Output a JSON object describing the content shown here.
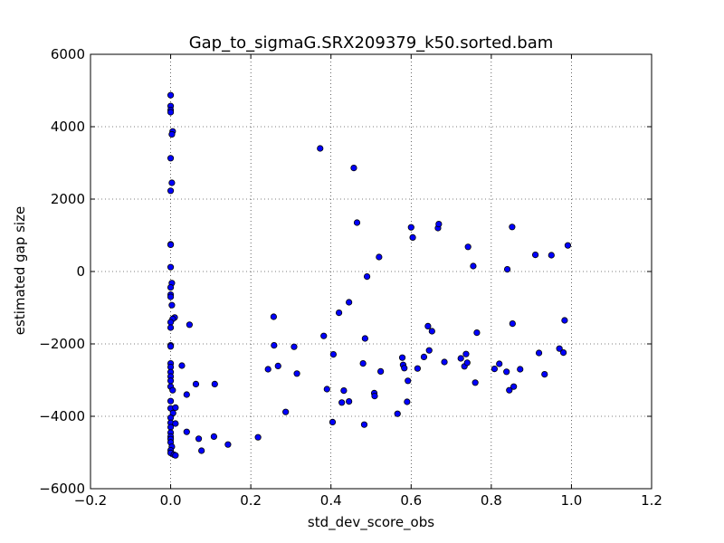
{
  "chart_data": {
    "type": "scatter",
    "title": "Gap_to_sigmaG.SRX209379_k50.sorted.bam",
    "xlabel": "std_dev_score_obs",
    "ylabel": "estimated gap size",
    "xlim": [
      -0.2,
      1.2
    ],
    "ylim": [
      -6000,
      6000
    ],
    "xticks": [
      -0.2,
      0.0,
      0.2,
      0.4,
      0.6,
      0.8,
      1.0,
      1.2
    ],
    "xtick_labels": [
      "−0.2",
      "0.0",
      "0.2",
      "0.4",
      "0.6",
      "0.8",
      "1.0",
      "1.2"
    ],
    "yticks": [
      -6000,
      -4000,
      -2000,
      0,
      2000,
      4000,
      6000
    ],
    "ytick_labels": [
      "−6000",
      "−4000",
      "−2000",
      "0",
      "2000",
      "4000",
      "6000"
    ],
    "grid": true,
    "marker_color": "#0000ff",
    "points": [
      [
        0.0,
        4870
      ],
      [
        0.0,
        4570
      ],
      [
        0.0,
        4460
      ],
      [
        0.0,
        4400
      ],
      [
        0.005,
        3870
      ],
      [
        0.003,
        3790
      ],
      [
        0.0,
        3130
      ],
      [
        0.003,
        2450
      ],
      [
        0.0,
        2230
      ],
      [
        0.0,
        750
      ],
      [
        0.0,
        740
      ],
      [
        0.0,
        120
      ],
      [
        0.003,
        -320
      ],
      [
        0.0,
        -440
      ],
      [
        0.0,
        -640
      ],
      [
        0.0,
        -700
      ],
      [
        0.003,
        -930
      ],
      [
        0.01,
        -1270
      ],
      [
        0.005,
        -1310
      ],
      [
        0.0,
        -1400
      ],
      [
        0.0,
        -1550
      ],
      [
        0.0,
        -2040
      ],
      [
        0.0,
        -2070
      ],
      [
        0.0,
        -2540
      ],
      [
        0.0,
        -2640
      ],
      [
        0.0,
        -2780
      ],
      [
        0.0,
        -2900
      ],
      [
        0.0,
        -3020
      ],
      [
        0.0,
        -3180
      ],
      [
        0.005,
        -3280
      ],
      [
        0.0,
        -3580
      ],
      [
        0.0,
        -3780
      ],
      [
        0.006,
        -3910
      ],
      [
        0.0,
        -4040
      ],
      [
        0.0,
        -4180
      ],
      [
        0.0,
        -4300
      ],
      [
        0.0,
        -4450
      ],
      [
        0.0,
        -4560
      ],
      [
        0.0,
        -4630
      ],
      [
        0.0,
        -4720
      ],
      [
        0.003,
        -4840
      ],
      [
        0.0,
        -4940
      ],
      [
        0.0,
        -5010
      ],
      [
        0.008,
        -5060
      ],
      [
        0.012,
        -5080
      ],
      [
        0.012,
        -3760
      ],
      [
        0.012,
        -4200
      ],
      [
        0.028,
        -2600
      ],
      [
        0.04,
        -3400
      ],
      [
        0.04,
        -4430
      ],
      [
        0.047,
        -1470
      ],
      [
        0.063,
        -3110
      ],
      [
        0.07,
        -4620
      ],
      [
        0.077,
        -4950
      ],
      [
        0.108,
        -4560
      ],
      [
        0.11,
        -3110
      ],
      [
        0.143,
        -4780
      ],
      [
        0.218,
        -4580
      ],
      [
        0.243,
        -2700
      ],
      [
        0.257,
        -1250
      ],
      [
        0.258,
        -2040
      ],
      [
        0.268,
        -2610
      ],
      [
        0.287,
        -3880
      ],
      [
        0.308,
        -2080
      ],
      [
        0.315,
        -2820
      ],
      [
        0.373,
        3400
      ],
      [
        0.382,
        -1780
      ],
      [
        0.39,
        -3250
      ],
      [
        0.404,
        -4160
      ],
      [
        0.406,
        -2290
      ],
      [
        0.42,
        -1140
      ],
      [
        0.427,
        -3620
      ],
      [
        0.432,
        -3290
      ],
      [
        0.445,
        -850
      ],
      [
        0.445,
        -3590
      ],
      [
        0.457,
        2860
      ],
      [
        0.465,
        1350
      ],
      [
        0.48,
        -2540
      ],
      [
        0.483,
        -4230
      ],
      [
        0.485,
        -1850
      ],
      [
        0.49,
        -140
      ],
      [
        0.508,
        -3360
      ],
      [
        0.509,
        -3440
      ],
      [
        0.52,
        400
      ],
      [
        0.524,
        -2760
      ],
      [
        0.566,
        -3930
      ],
      [
        0.578,
        -2380
      ],
      [
        0.58,
        -2580
      ],
      [
        0.583,
        -2670
      ],
      [
        0.59,
        -3600
      ],
      [
        0.592,
        -3020
      ],
      [
        0.6,
        1220
      ],
      [
        0.604,
        940
      ],
      [
        0.616,
        -2680
      ],
      [
        0.632,
        -2360
      ],
      [
        0.642,
        -1510
      ],
      [
        0.645,
        -2180
      ],
      [
        0.652,
        -1650
      ],
      [
        0.667,
        1200
      ],
      [
        0.669,
        1310
      ],
      [
        0.683,
        -2500
      ],
      [
        0.724,
        -2400
      ],
      [
        0.733,
        -2620
      ],
      [
        0.737,
        -2280
      ],
      [
        0.74,
        -2520
      ],
      [
        0.742,
        680
      ],
      [
        0.755,
        150
      ],
      [
        0.76,
        -3070
      ],
      [
        0.764,
        -1690
      ],
      [
        0.808,
        -2690
      ],
      [
        0.82,
        -2550
      ],
      [
        0.838,
        -2770
      ],
      [
        0.84,
        60
      ],
      [
        0.845,
        -3280
      ],
      [
        0.852,
        1230
      ],
      [
        0.853,
        -1440
      ],
      [
        0.856,
        -3180
      ],
      [
        0.872,
        -2700
      ],
      [
        0.91,
        460
      ],
      [
        0.919,
        -2250
      ],
      [
        0.933,
        -2840
      ],
      [
        0.95,
        450
      ],
      [
        0.97,
        -2130
      ],
      [
        0.98,
        -2240
      ],
      [
        0.983,
        -1350
      ],
      [
        0.991,
        720
      ]
    ]
  }
}
